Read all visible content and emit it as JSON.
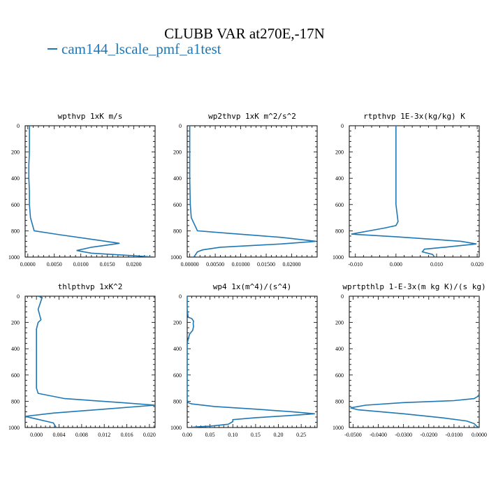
{
  "title": "CLUBB VAR at270E,-17N",
  "legend": {
    "label": "cam144_lscale_pmf_a1test",
    "color": "#1f77b4"
  },
  "chart_data": [
    {
      "type": "line",
      "title": "wpthvp  1xK m/s",
      "xlim": [
        -0.0005,
        0.024
      ],
      "ylim": [
        1000,
        0
      ],
      "yticks": [
        0,
        200,
        400,
        600,
        800,
        1000
      ],
      "xticks": [
        0.0,
        0.005,
        0.01,
        0.015,
        0.02
      ],
      "xticklabels": [
        "0.0000",
        "0.0050",
        "0.0100",
        "0.0150",
        "0.0200"
      ],
      "series": [
        {
          "color": "#1f77b4",
          "x": [
            0.0003,
            0.0003,
            0.0003,
            0.0002,
            0.0002,
            0.0003,
            0.0003,
            0.0005,
            0.0012,
            0.006,
            0.013,
            0.0173,
            0.012,
            0.0092,
            0.012,
            0.02,
            0.024
          ],
          "y": [
            0,
            100,
            200,
            300,
            400,
            500,
            600,
            700,
            800,
            830,
            870,
            895,
            925,
            950,
            970,
            990,
            1000
          ]
        }
      ]
    },
    {
      "type": "line",
      "title": "wp2thvp  1xK m^2/s^2",
      "xlim": [
        -0.0005,
        0.025
      ],
      "ylim": [
        1000,
        0
      ],
      "yticks": [
        0,
        200,
        400,
        600,
        800,
        1000
      ],
      "xticks": [
        0.0,
        0.005,
        0.01,
        0.015,
        0.02
      ],
      "xticklabels": [
        "0.00000",
        "0.00500",
        "0.01000",
        "0.01500",
        "0.02000"
      ],
      "series": [
        {
          "color": "#1f77b4",
          "x": [
            0.0,
            0.0,
            0.0,
            0.0,
            0.0,
            0.0001,
            0.0003,
            0.0015,
            0.008,
            0.018,
            0.0248,
            0.018,
            0.006,
            0.0025,
            0.0015,
            0.0008
          ],
          "y": [
            0,
            100,
            200,
            300,
            400,
            600,
            700,
            800,
            820,
            850,
            880,
            900,
            925,
            945,
            960,
            1000
          ]
        }
      ]
    },
    {
      "type": "line",
      "title": "rtpthvp  1E-3x(kg/kg) K",
      "xlim": [
        -0.0115,
        0.0205
      ],
      "ylim": [
        1000,
        0
      ],
      "yticks": [
        0,
        200,
        400,
        600,
        800,
        1000
      ],
      "xticks": [
        -0.01,
        0.0,
        0.01,
        0.02
      ],
      "xticklabels": [
        "-0.010",
        "0.000",
        "0.010",
        "0.020"
      ],
      "series": [
        {
          "color": "#1f77b4",
          "x": [
            0.0,
            0.0,
            0.0,
            0.0,
            0.0,
            0.0,
            0.0005,
            0.0,
            -0.003,
            -0.011,
            0.0,
            0.016,
            0.0198,
            0.012,
            0.007,
            0.0065,
            0.009,
            0.0095
          ],
          "y": [
            0,
            100,
            200,
            300,
            400,
            600,
            730,
            760,
            780,
            825,
            845,
            880,
            900,
            925,
            940,
            960,
            980,
            1000
          ]
        }
      ]
    },
    {
      "type": "line",
      "title": "thlpthvp  1xK^2",
      "xlim": [
        -0.002,
        0.021
      ],
      "ylim": [
        1000,
        0
      ],
      "yticks": [
        0,
        200,
        400,
        600,
        800,
        1000
      ],
      "xticks": [
        0.0,
        0.004,
        0.008,
        0.012,
        0.016,
        0.02
      ],
      "xticklabels": [
        "0.000",
        "0.004",
        "0.008",
        "0.012",
        "0.016",
        "0.020"
      ],
      "series": [
        {
          "color": "#1f77b4",
          "x": [
            0.0003,
            0.001,
            0.0003,
            0.0008,
            0.0003,
            0.0,
            0.0,
            0.0,
            0.0,
            0.0,
            0.0,
            0.0003,
            0.005,
            0.015,
            0.021,
            0.012,
            0.003,
            -0.002,
            0.0,
            0.003,
            0.0035
          ],
          "y": [
            0,
            10,
            100,
            180,
            200,
            250,
            300,
            400,
            500,
            600,
            700,
            740,
            780,
            810,
            830,
            860,
            890,
            915,
            935,
            965,
            1000
          ]
        }
      ]
    },
    {
      "type": "line",
      "title": "wp4  1x(m^4)/(s^4)",
      "xlim": [
        0.0,
        0.285
      ],
      "ylim": [
        1000,
        0
      ],
      "yticks": [
        0,
        200,
        400,
        600,
        800,
        1000
      ],
      "xticks": [
        0.0,
        0.05,
        0.1,
        0.15,
        0.2,
        0.25
      ],
      "xticklabels": [
        "0.00",
        "0.05",
        "0.10",
        "0.15",
        "0.20",
        "0.25"
      ],
      "series": [
        {
          "color": "#1f77b4",
          "x": [
            0.0,
            0.0,
            0.001,
            0.002,
            0.01,
            0.014,
            0.013,
            0.014,
            0.012,
            0.005,
            0.002,
            0.0,
            0.0,
            0.0,
            0.0,
            0.0,
            0.0,
            0.0,
            0.002,
            0.01,
            0.06,
            0.15,
            0.23,
            0.28,
            0.22,
            0.15,
            0.1,
            0.1,
            0.09,
            0.05,
            0.02,
            0.005
          ],
          "y": [
            0,
            100,
            130,
            160,
            170,
            190,
            210,
            230,
            260,
            290,
            330,
            360,
            400,
            500,
            600,
            700,
            760,
            790,
            810,
            820,
            840,
            860,
            880,
            895,
            910,
            925,
            940,
            955,
            975,
            990,
            995,
            1000
          ]
        }
      ]
    },
    {
      "type": "line",
      "title": "wprtpthlp  1-E-3x(m kg K)/(s kg)",
      "xlim": [
        -0.0515,
        0.0
      ],
      "ylim": [
        1000,
        0
      ],
      "yticks": [
        0,
        200,
        400,
        600,
        800,
        1000
      ],
      "xticks": [
        -0.05,
        -0.04,
        -0.03,
        -0.02,
        -0.01,
        0.0
      ],
      "xticklabels": [
        "-0.0500",
        "-0.0400",
        "-0.0300",
        "-0.0200",
        "-0.0100",
        "0.0000"
      ],
      "series": [
        {
          "color": "#1f77b4",
          "x": [
            0.0,
            0.0,
            0.0,
            0.0,
            0.0,
            -0.0003,
            -0.002,
            -0.01,
            -0.03,
            -0.045,
            -0.051,
            -0.048,
            -0.03,
            -0.015,
            -0.005,
            -0.002,
            -0.001,
            0.0
          ],
          "y": [
            0,
            200,
            400,
            600,
            740,
            760,
            780,
            795,
            810,
            830,
            850,
            865,
            895,
            925,
            950,
            970,
            990,
            1000
          ]
        }
      ]
    }
  ]
}
